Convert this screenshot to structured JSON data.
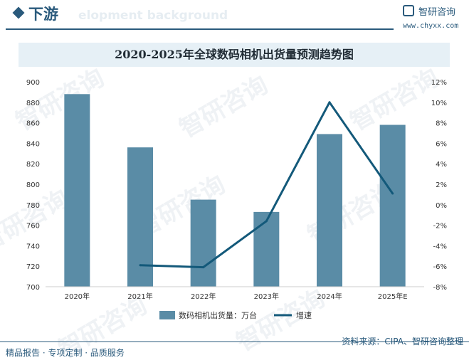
{
  "header": {
    "section_title": "下游",
    "bg_watermark_text": "elopment background",
    "brand_name": "智研咨询",
    "brand_url": "www.chyxx.com"
  },
  "watermark": {
    "text": "智研咨询"
  },
  "footer": {
    "source": "资料来源：CIPA、智研咨询整理",
    "tagline": "精品报告 · 专项定制 · 品质服务"
  },
  "colors": {
    "accent": "#2a5a7c",
    "bar": "#5a8ca6",
    "line": "#13597a",
    "title_bg": "#e6f0f6"
  },
  "chart_data": {
    "type": "bar",
    "title": "2020-2025年全球数码相机出货量预测趋势图",
    "categories": [
      "2020年",
      "2021年",
      "2022年",
      "2023年",
      "2024年",
      "2025年E"
    ],
    "series": [
      {
        "name": "数码相机出货量：万台",
        "type": "bar",
        "axis": "left",
        "values": [
          888,
          836,
          785,
          773,
          849,
          858
        ]
      },
      {
        "name": "增速",
        "type": "line",
        "axis": "right",
        "values": [
          null,
          -5.9,
          -6.1,
          -1.6,
          10.0,
          1.1
        ]
      }
    ],
    "y_left": {
      "min": 700,
      "max": 900,
      "ticks": [
        "700",
        "720",
        "740",
        "760",
        "780",
        "800",
        "820",
        "840",
        "860",
        "880",
        "900"
      ]
    },
    "y_right": {
      "min": -8,
      "max": 12,
      "ticks": [
        "-8%",
        "-6%",
        "-4%",
        "-2%",
        "0%",
        "2%",
        "4%",
        "6%",
        "8%",
        "10%",
        "12%"
      ]
    },
    "grid": false,
    "legend_position": "bottom"
  }
}
